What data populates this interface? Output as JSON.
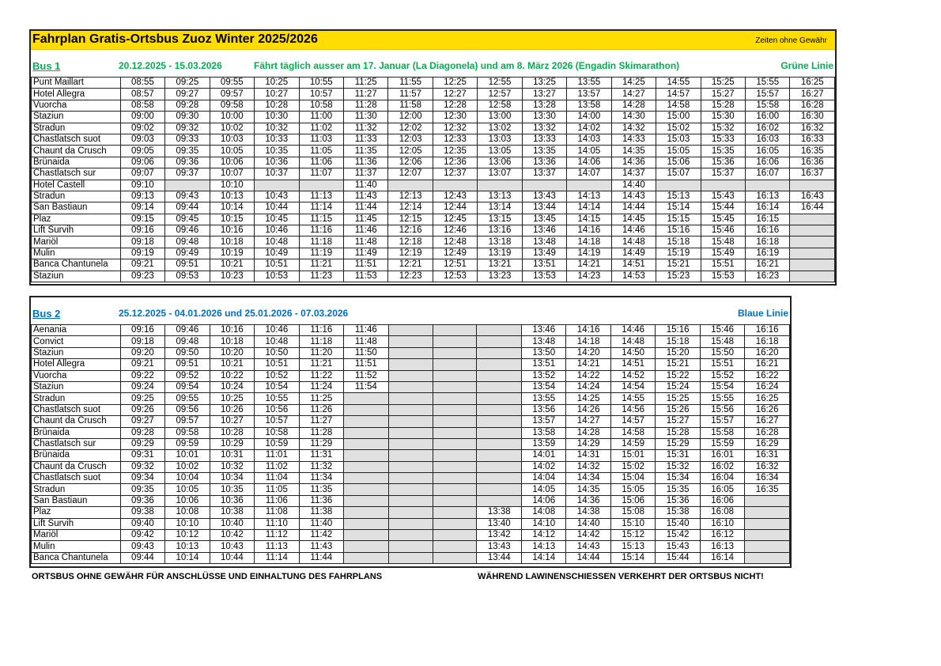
{
  "header": {
    "title": "Fahrplan Gratis-Ortsbus Zuoz Winter 2025/2026",
    "note": "Zeiten ohne Gewähr"
  },
  "colors": {
    "title_bar": "#ffdd00",
    "bus1": "#00b050",
    "bus2": "#0070c0",
    "empty_cell": "#e0e0e0"
  },
  "bus1": {
    "name": "Bus 1",
    "period": "20.12.2025 - 15.03.2026",
    "remark": "Fährt täglich ausser am 17. Januar (La Diagonela) und am 8. März 2026 (Engadin Skimarathon)",
    "line": "Grüne Linie",
    "rows": [
      {
        "stop": "Punt Maillart",
        "times": [
          "08:55",
          "09:25",
          "09:55",
          "10:25",
          "10:55",
          "11:25",
          "11:55",
          "12:25",
          "12:55",
          "13:25",
          "13:55",
          "14:25",
          "14:55",
          "15:25",
          "15:55",
          "16:25"
        ]
      },
      {
        "stop": "Hotel Allegra",
        "times": [
          "08:57",
          "09:27",
          "09:57",
          "10:27",
          "10:57",
          "11:27",
          "11:57",
          "12:27",
          "12:57",
          "13:27",
          "13:57",
          "14:27",
          "14:57",
          "15:27",
          "15:57",
          "16:27"
        ]
      },
      {
        "stop": "Vuorcha",
        "times": [
          "08:58",
          "09:28",
          "09:58",
          "10:28",
          "10:58",
          "11:28",
          "11:58",
          "12:28",
          "12:58",
          "13:28",
          "13:58",
          "14:28",
          "14:58",
          "15:28",
          "15:58",
          "16:28"
        ]
      },
      {
        "stop": "Staziun",
        "times": [
          "09:00",
          "09:30",
          "10:00",
          "10:30",
          "11:00",
          "11:30",
          "12:00",
          "12:30",
          "13:00",
          "13:30",
          "14:00",
          "14:30",
          "15:00",
          "15:30",
          "16:00",
          "16:30"
        ]
      },
      {
        "stop": "Stradun",
        "times": [
          "09:02",
          "09:32",
          "10:02",
          "10:32",
          "11:02",
          "11:32",
          "12:02",
          "12:32",
          "13:02",
          "13:32",
          "14:02",
          "14:32",
          "15:02",
          "15:32",
          "16:02",
          "16:32"
        ]
      },
      {
        "stop": "Chastlatsch suot",
        "times": [
          "09:03",
          "09:33",
          "10:03",
          "10:33",
          "11:03",
          "11:33",
          "12:03",
          "12:33",
          "13:03",
          "13:33",
          "14:03",
          "14:33",
          "15:03",
          "15:33",
          "16:03",
          "16:33"
        ]
      },
      {
        "stop": "Chaunt da Crusch",
        "times": [
          "09:05",
          "09:35",
          "10:05",
          "10:35",
          "11:05",
          "11:35",
          "12:05",
          "12:35",
          "13:05",
          "13:35",
          "14:05",
          "14:35",
          "15:05",
          "15:35",
          "16:05",
          "16:35"
        ]
      },
      {
        "stop": "Brünaida",
        "times": [
          "09:06",
          "09:36",
          "10:06",
          "10:36",
          "11:06",
          "11:36",
          "12:06",
          "12:36",
          "13:06",
          "13:36",
          "14:06",
          "14:36",
          "15:06",
          "15:36",
          "16:06",
          "16:36"
        ]
      },
      {
        "stop": "Chastlatsch sur",
        "times": [
          "09:07",
          "09:37",
          "10:07",
          "10:37",
          "11:07",
          "11:37",
          "12:07",
          "12:37",
          "13:07",
          "13:37",
          "14:07",
          "14:37",
          "15:07",
          "15:37",
          "16:07",
          "16:37"
        ]
      },
      {
        "stop": "Hotel Castell",
        "times": [
          "09:10",
          null,
          "10:10",
          null,
          null,
          "11:40",
          null,
          null,
          null,
          null,
          null,
          "14:40",
          null,
          null,
          null,
          null
        ]
      },
      {
        "stop": "Stradun",
        "times": [
          "09:13",
          "09:43",
          "10:13",
          "10:43",
          "11:13",
          "11:43",
          "12:13",
          "12:43",
          "13:13",
          "13:43",
          "14:13",
          "14:43",
          "15:13",
          "15:43",
          "16:13",
          "16:43"
        ]
      },
      {
        "stop": "San Bastiaun",
        "times": [
          "09:14",
          "09:44",
          "10:14",
          "10:44",
          "11:14",
          "11:44",
          "12:14",
          "12:44",
          "13:14",
          "13:44",
          "14:14",
          "14:44",
          "15:14",
          "15:44",
          "16:14",
          "16:44"
        ]
      },
      {
        "stop": "Plaz",
        "times": [
          "09:15",
          "09:45",
          "10:15",
          "10:45",
          "11:15",
          "11:45",
          "12:15",
          "12:45",
          "13:15",
          "13:45",
          "14:15",
          "14:45",
          "15:15",
          "15:45",
          "16:15",
          null
        ]
      },
      {
        "stop": "Lift Survih",
        "times": [
          "09:16",
          "09:46",
          "10:16",
          "10:46",
          "11:16",
          "11:46",
          "12:16",
          "12:46",
          "13:16",
          "13:46",
          "14:16",
          "14:46",
          "15:16",
          "15:46",
          "16:16",
          null
        ]
      },
      {
        "stop": "Mariöl",
        "times": [
          "09:18",
          "09:48",
          "10:18",
          "10:48",
          "11:18",
          "11:48",
          "12:18",
          "12:48",
          "13:18",
          "13:48",
          "14:18",
          "14:48",
          "15:18",
          "15:48",
          "16:18",
          null
        ]
      },
      {
        "stop": "Mulin",
        "times": [
          "09:19",
          "09:49",
          "10:19",
          "10:49",
          "11:19",
          "11:49",
          "12:19",
          "12:49",
          "13:19",
          "13:49",
          "14:19",
          "14:49",
          "15:19",
          "15:49",
          "16:19",
          null
        ]
      },
      {
        "stop": "Banca Chantunela",
        "times": [
          "09:21",
          "09:51",
          "10:21",
          "10:51",
          "11:21",
          "11:51",
          "12:21",
          "12:51",
          "13:21",
          "13:51",
          "14:21",
          "14:51",
          "15:21",
          "15:51",
          "16:21",
          null
        ]
      },
      {
        "stop": "Staziun",
        "times": [
          "09:23",
          "09:53",
          "10:23",
          "10:53",
          "11:23",
          "11:53",
          "12:23",
          "12:53",
          "13:23",
          "13:53",
          "14:23",
          "14:53",
          "15:23",
          "15:53",
          "16:23",
          null
        ]
      }
    ]
  },
  "bus2": {
    "name": "Bus 2",
    "period": "25.12.2025 - 04.01.2026 und 25.01.2026 - 07.03.2026",
    "line": "Blaue Linie",
    "rows": [
      {
        "stop": "Aenania",
        "times": [
          "09:16",
          "09:46",
          "10:16",
          "10:46",
          "11:16",
          "11:46",
          null,
          null,
          null,
          "13:46",
          "14:16",
          "14:46",
          "15:16",
          "15:46",
          "16:16"
        ]
      },
      {
        "stop": "Convict",
        "times": [
          "09:18",
          "09:48",
          "10:18",
          "10:48",
          "11:18",
          "11:48",
          null,
          null,
          null,
          "13:48",
          "14:18",
          "14:48",
          "15:18",
          "15:48",
          "16:18"
        ]
      },
      {
        "stop": "Staziun",
        "times": [
          "09:20",
          "09:50",
          "10:20",
          "10:50",
          "11:20",
          "11:50",
          null,
          null,
          null,
          "13:50",
          "14:20",
          "14:50",
          "15:20",
          "15:50",
          "16:20"
        ]
      },
      {
        "stop": "Hotel Allegra",
        "times": [
          "09:21",
          "09:51",
          "10:21",
          "10:51",
          "11:21",
          "11:51",
          null,
          null,
          null,
          "13:51",
          "14:21",
          "14:51",
          "15:21",
          "15:51",
          "16:21"
        ]
      },
      {
        "stop": "Vuorcha",
        "times": [
          "09:22",
          "09:52",
          "10:22",
          "10:52",
          "11:22",
          "11:52",
          null,
          null,
          null,
          "13:52",
          "14:22",
          "14:52",
          "15:22",
          "15:52",
          "16:22"
        ]
      },
      {
        "stop": "Staziun",
        "times": [
          "09:24",
          "09:54",
          "10:24",
          "10:54",
          "11:24",
          "11:54",
          null,
          null,
          null,
          "13:54",
          "14:24",
          "14:54",
          "15:24",
          "15:54",
          "16:24"
        ]
      },
      {
        "stop": "Stradun",
        "times": [
          "09:25",
          "09:55",
          "10:25",
          "10:55",
          "11:25",
          null,
          null,
          null,
          null,
          "13:55",
          "14:25",
          "14:55",
          "15:25",
          "15:55",
          "16:25"
        ]
      },
      {
        "stop": "Chastlatsch suot",
        "times": [
          "09:26",
          "09:56",
          "10:26",
          "10:56",
          "11:26",
          null,
          null,
          null,
          null,
          "13:56",
          "14:26",
          "14:56",
          "15:26",
          "15:56",
          "16:26"
        ]
      },
      {
        "stop": "Chaunt da Crusch",
        "times": [
          "09:27",
          "09:57",
          "10:27",
          "10:57",
          "11:27",
          null,
          null,
          null,
          null,
          "13:57",
          "14:27",
          "14:57",
          "15:27",
          "15:57",
          "16:27"
        ]
      },
      {
        "stop": "Brünaida",
        "times": [
          "09:28",
          "09:58",
          "10:28",
          "10:58",
          "11:28",
          null,
          null,
          null,
          null,
          "13:58",
          "14:28",
          "14:58",
          "15:28",
          "15:58",
          "16:28"
        ]
      },
      {
        "stop": "Chastlatsch sur",
        "times": [
          "09:29",
          "09:59",
          "10:29",
          "10:59",
          "11:29",
          null,
          null,
          null,
          null,
          "13:59",
          "14:29",
          "14:59",
          "15:29",
          "15:59",
          "16:29"
        ]
      },
      {
        "stop": "Brünaida",
        "times": [
          "09:31",
          "10:01",
          "10:31",
          "11:01",
          "11:31",
          null,
          null,
          null,
          null,
          "14:01",
          "14:31",
          "15:01",
          "15:31",
          "16:01",
          "16:31"
        ]
      },
      {
        "stop": "Chaunt da Crusch",
        "times": [
          "09:32",
          "10:02",
          "10:32",
          "11:02",
          "11:32",
          null,
          null,
          null,
          null,
          "14:02",
          "14:32",
          "15:02",
          "15:32",
          "16:02",
          "16:32"
        ]
      },
      {
        "stop": "Chastlatsch suot",
        "times": [
          "09:34",
          "10:04",
          "10:34",
          "11:04",
          "11:34",
          null,
          null,
          null,
          null,
          "14:04",
          "14:34",
          "15:04",
          "15:34",
          "16:04",
          "16:34"
        ]
      },
      {
        "stop": "Stradun",
        "times": [
          "09:35",
          "10:05",
          "10:35",
          "11:05",
          "11:35",
          null,
          null,
          null,
          null,
          "14:05",
          "14:35",
          "15:05",
          "15:35",
          "16:05",
          "16:35"
        ]
      },
      {
        "stop": "San Bastiaun",
        "times": [
          "09:36",
          "10:06",
          "10:36",
          "11:06",
          "11:36",
          null,
          null,
          null,
          null,
          "14:06",
          "14:36",
          "15:06",
          "15:36",
          "16:06",
          null
        ]
      },
      {
        "stop": "Plaz",
        "times": [
          "09:38",
          "10:08",
          "10:38",
          "11:08",
          "11:38",
          null,
          null,
          null,
          "13:38",
          "14:08",
          "14:38",
          "15:08",
          "15:38",
          "16:08",
          null
        ]
      },
      {
        "stop": "Lift Survih",
        "times": [
          "09:40",
          "10:10",
          "10:40",
          "11:10",
          "11:40",
          null,
          null,
          null,
          "13:40",
          "14:10",
          "14:40",
          "15:10",
          "15:40",
          "16:10",
          null
        ]
      },
      {
        "stop": "Mariöl",
        "times": [
          "09:42",
          "10:12",
          "10:42",
          "11:12",
          "11:42",
          null,
          null,
          null,
          "13:42",
          "14:12",
          "14:42",
          "15:12",
          "15:42",
          "16:12",
          null
        ]
      },
      {
        "stop": "Mulin",
        "times": [
          "09:43",
          "10:13",
          "10:43",
          "11:13",
          "11:43",
          null,
          null,
          null,
          "13:43",
          "14:13",
          "14:43",
          "15:13",
          "15:43",
          "16:13",
          null
        ]
      },
      {
        "stop": "Banca Chantunela",
        "times": [
          "09:44",
          "10:14",
          "10:44",
          "11:14",
          "11:44",
          null,
          null,
          null,
          "13:44",
          "14:14",
          "14:44",
          "15:14",
          "15:44",
          "16:14",
          null
        ]
      }
    ]
  },
  "footer": {
    "left": "ORTSBUS OHNE GEWÄHR FÜR ANSCHLÜSSE UND EINHALTUNG DES FAHRPLANS",
    "right": "WÄHREND LAWINENSCHIESSEN VERKEHRT DER ORTSBUS NICHT!"
  }
}
